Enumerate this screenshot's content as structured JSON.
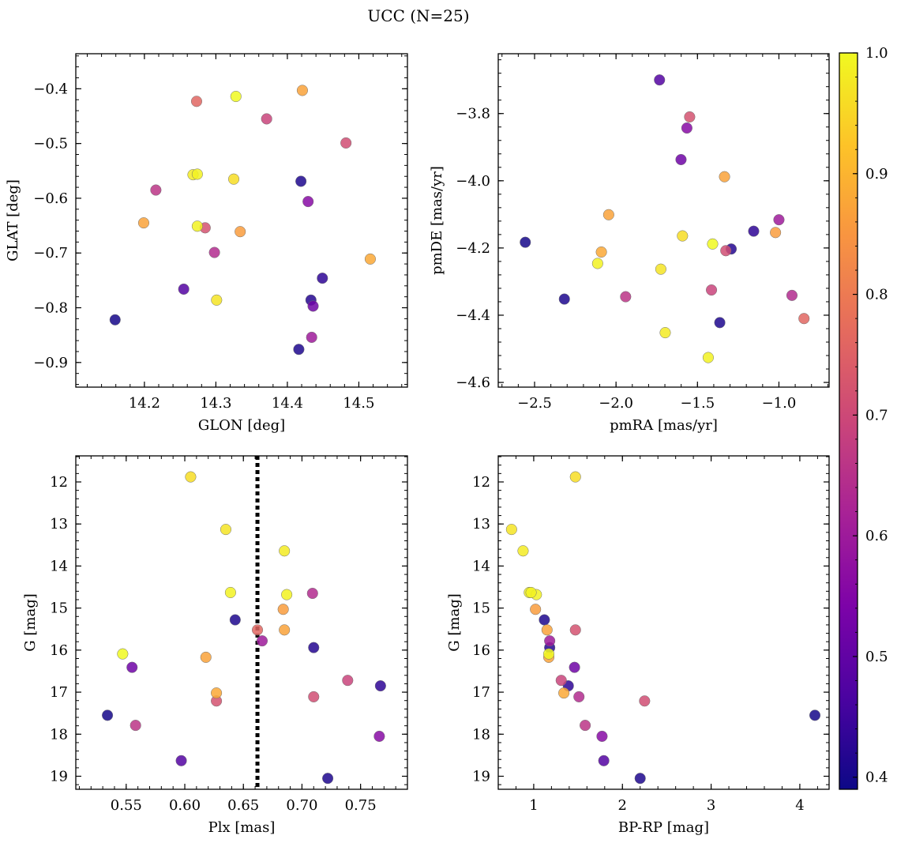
{
  "title": "UCC (N=25)",
  "colorbar": {
    "cmap": "plasma",
    "min": 0.39,
    "max": 1.0,
    "ticks": [
      0.4,
      0.5,
      0.6,
      0.7,
      0.8,
      0.9,
      1.0
    ],
    "tick_labels": [
      "0.4",
      "0.5",
      "0.6",
      "0.7",
      "0.8",
      "0.9",
      "1.0"
    ]
  },
  "chart_data": [
    {
      "type": "scatter",
      "xlabel": "GLON [deg]",
      "ylabel": "GLAT [deg]",
      "xlim": [
        14.104,
        14.568
      ],
      "ylim": [
        -0.945,
        -0.336
      ],
      "y_inverted": false,
      "xticks": [
        14.2,
        14.3,
        14.4,
        14.5
      ],
      "xtick_labels": [
        "14.2",
        "14.3",
        "14.4",
        "14.5"
      ],
      "yticks": [
        -0.4,
        -0.5,
        -0.6,
        -0.7,
        -0.8,
        -0.9
      ],
      "ytick_labels": [
        "−0.4",
        "−0.5",
        "−0.6",
        "−0.7",
        "−0.8",
        "−0.9"
      ],
      "points": [
        {
          "x": 14.159,
          "y": -0.822,
          "c": 0.4
        },
        {
          "x": 14.419,
          "y": -0.569,
          "c": 0.41
        },
        {
          "x": 14.416,
          "y": -0.876,
          "c": 0.41
        },
        {
          "x": 14.433,
          "y": -0.786,
          "c": 0.42
        },
        {
          "x": 14.449,
          "y": -0.746,
          "c": 0.43
        },
        {
          "x": 14.255,
          "y": -0.766,
          "c": 0.48
        },
        {
          "x": 14.436,
          "y": -0.797,
          "c": 0.52
        },
        {
          "x": 14.429,
          "y": -0.606,
          "c": 0.56
        },
        {
          "x": 14.434,
          "y": -0.854,
          "c": 0.6
        },
        {
          "x": 14.298,
          "y": -0.699,
          "c": 0.64
        },
        {
          "x": 14.216,
          "y": -0.585,
          "c": 0.66
        },
        {
          "x": 14.371,
          "y": -0.455,
          "c": 0.69
        },
        {
          "x": 14.482,
          "y": -0.499,
          "c": 0.71
        },
        {
          "x": 14.285,
          "y": -0.654,
          "c": 0.72
        },
        {
          "x": 14.273,
          "y": -0.423,
          "c": 0.76
        },
        {
          "x": 14.334,
          "y": -0.661,
          "c": 0.86
        },
        {
          "x": 14.421,
          "y": -0.403,
          "c": 0.87
        },
        {
          "x": 14.199,
          "y": -0.645,
          "c": 0.87
        },
        {
          "x": 14.516,
          "y": -0.711,
          "c": 0.88
        },
        {
          "x": 14.325,
          "y": -0.565,
          "c": 0.96
        },
        {
          "x": 14.301,
          "y": -0.786,
          "c": 0.97
        },
        {
          "x": 14.268,
          "y": -0.557,
          "c": 0.98
        },
        {
          "x": 14.274,
          "y": -0.556,
          "c": 0.99
        },
        {
          "x": 14.274,
          "y": -0.651,
          "c": 0.99
        },
        {
          "x": 14.328,
          "y": -0.414,
          "c": 1.0
        }
      ]
    },
    {
      "type": "scatter",
      "xlabel": "pmRA [mas/yr]",
      "ylabel": "pmDE [mas/yr]",
      "xlim": [
        -2.723,
        -0.692
      ],
      "ylim": [
        -4.614,
        -3.622
      ],
      "y_inverted": false,
      "xticks": [
        -2.5,
        -2.0,
        -1.5,
        -1.0
      ],
      "xtick_labels": [
        "−2.5",
        "−2.0",
        "−1.5",
        "−1.0"
      ],
      "yticks": [
        -3.8,
        -4.0,
        -4.2,
        -4.4,
        -4.6
      ],
      "ytick_labels": [
        "−3.8",
        "−4.0",
        "−4.2",
        "−4.4",
        "−4.6"
      ],
      "points": [
        {
          "x": -2.557,
          "y": -4.183,
          "c": 0.4
        },
        {
          "x": -2.317,
          "y": -4.352,
          "c": 0.41
        },
        {
          "x": -1.363,
          "y": -4.422,
          "c": 0.41
        },
        {
          "x": -1.293,
          "y": -4.203,
          "c": 0.42
        },
        {
          "x": -1.155,
          "y": -4.15,
          "c": 0.43
        },
        {
          "x": -1.733,
          "y": -3.7,
          "c": 0.48
        },
        {
          "x": -1.601,
          "y": -3.937,
          "c": 0.52
        },
        {
          "x": -1.565,
          "y": -3.843,
          "c": 0.56
        },
        {
          "x": -1.0,
          "y": -4.116,
          "c": 0.6
        },
        {
          "x": -0.92,
          "y": -4.341,
          "c": 0.64
        },
        {
          "x": -1.941,
          "y": -4.345,
          "c": 0.66
        },
        {
          "x": -1.414,
          "y": -4.325,
          "c": 0.69
        },
        {
          "x": -1.326,
          "y": -4.208,
          "c": 0.71
        },
        {
          "x": -1.548,
          "y": -3.81,
          "c": 0.72
        },
        {
          "x": -0.846,
          "y": -4.41,
          "c": 0.76
        },
        {
          "x": -1.021,
          "y": -4.154,
          "c": 0.86
        },
        {
          "x": -1.334,
          "y": -3.988,
          "c": 0.87
        },
        {
          "x": -2.045,
          "y": -4.101,
          "c": 0.87
        },
        {
          "x": -2.09,
          "y": -4.212,
          "c": 0.88
        },
        {
          "x": -1.592,
          "y": -4.164,
          "c": 0.96
        },
        {
          "x": -1.725,
          "y": -4.263,
          "c": 0.97
        },
        {
          "x": -1.698,
          "y": -4.452,
          "c": 0.98
        },
        {
          "x": -2.113,
          "y": -4.246,
          "c": 0.99
        },
        {
          "x": -1.434,
          "y": -4.526,
          "c": 0.99
        },
        {
          "x": -1.407,
          "y": -4.188,
          "c": 1.0
        }
      ]
    },
    {
      "type": "scatter",
      "xlabel": "Plx [mas]",
      "ylabel": "G [mag]",
      "xlim": [
        0.507,
        0.79
      ],
      "ylim": [
        19.31,
        11.38
      ],
      "y_inverted": true,
      "xticks": [
        0.55,
        0.6,
        0.65,
        0.7,
        0.75
      ],
      "xtick_labels": [
        "0.55",
        "0.60",
        "0.65",
        "0.70",
        "0.75"
      ],
      "yticks": [
        12,
        13,
        14,
        15,
        16,
        17,
        18,
        19
      ],
      "ytick_labels": [
        "12",
        "13",
        "14",
        "15",
        "16",
        "17",
        "18",
        "19"
      ],
      "vline": {
        "x": 0.662,
        "style": "dotted"
      },
      "points": [
        {
          "x": 0.534,
          "y": 17.55,
          "c": 0.4
        },
        {
          "x": 0.722,
          "y": 19.05,
          "c": 0.41
        },
        {
          "x": 0.643,
          "y": 15.28,
          "c": 0.41
        },
        {
          "x": 0.71,
          "y": 15.94,
          "c": 0.42
        },
        {
          "x": 0.767,
          "y": 16.85,
          "c": 0.43
        },
        {
          "x": 0.597,
          "y": 18.63,
          "c": 0.48
        },
        {
          "x": 0.555,
          "y": 16.41,
          "c": 0.52
        },
        {
          "x": 0.766,
          "y": 18.05,
          "c": 0.56
        },
        {
          "x": 0.666,
          "y": 15.78,
          "c": 0.6
        },
        {
          "x": 0.709,
          "y": 14.65,
          "c": 0.64
        },
        {
          "x": 0.558,
          "y": 17.79,
          "c": 0.66
        },
        {
          "x": 0.739,
          "y": 16.72,
          "c": 0.69
        },
        {
          "x": 0.71,
          "y": 17.11,
          "c": 0.71
        },
        {
          "x": 0.627,
          "y": 17.21,
          "c": 0.72
        },
        {
          "x": 0.662,
          "y": 15.52,
          "c": 0.76
        },
        {
          "x": 0.684,
          "y": 15.03,
          "c": 0.86
        },
        {
          "x": 0.685,
          "y": 15.52,
          "c": 0.87
        },
        {
          "x": 0.618,
          "y": 16.17,
          "c": 0.87
        },
        {
          "x": 0.627,
          "y": 17.02,
          "c": 0.88
        },
        {
          "x": 0.605,
          "y": 11.88,
          "c": 0.96
        },
        {
          "x": 0.635,
          "y": 13.13,
          "c": 0.97
        },
        {
          "x": 0.685,
          "y": 13.64,
          "c": 0.98
        },
        {
          "x": 0.639,
          "y": 14.63,
          "c": 0.99
        },
        {
          "x": 0.687,
          "y": 14.68,
          "c": 0.99
        },
        {
          "x": 0.547,
          "y": 16.09,
          "c": 1.0
        }
      ]
    },
    {
      "type": "scatter",
      "xlabel": "BP-RP [mag]",
      "ylabel": "G [mag]",
      "xlim": [
        0.6,
        4.33
      ],
      "ylim": [
        19.31,
        11.38
      ],
      "y_inverted": true,
      "xticks": [
        1,
        2,
        3,
        4
      ],
      "xtick_labels": [
        "1",
        "2",
        "3",
        "4"
      ],
      "yticks": [
        12,
        13,
        14,
        15,
        16,
        17,
        18,
        19
      ],
      "ytick_labels": [
        "12",
        "13",
        "14",
        "15",
        "16",
        "17",
        "18",
        "19"
      ],
      "points": [
        {
          "x": 4.17,
          "y": 17.55,
          "c": 0.4
        },
        {
          "x": 2.2,
          "y": 19.05,
          "c": 0.41
        },
        {
          "x": 1.12,
          "y": 15.28,
          "c": 0.41
        },
        {
          "x": 1.18,
          "y": 15.94,
          "c": 0.42
        },
        {
          "x": 1.39,
          "y": 16.85,
          "c": 0.43
        },
        {
          "x": 1.79,
          "y": 18.63,
          "c": 0.48
        },
        {
          "x": 1.46,
          "y": 16.41,
          "c": 0.52
        },
        {
          "x": 1.77,
          "y": 18.05,
          "c": 0.56
        },
        {
          "x": 1.18,
          "y": 15.78,
          "c": 0.6
        },
        {
          "x": 1.51,
          "y": 17.11,
          "c": 0.64
        },
        {
          "x": 1.58,
          "y": 17.79,
          "c": 0.66
        },
        {
          "x": 1.31,
          "y": 16.72,
          "c": 0.69
        },
        {
          "x": 2.25,
          "y": 17.21,
          "c": 0.71
        },
        {
          "x": 1.47,
          "y": 15.52,
          "c": 0.72
        },
        {
          "x": 1.02,
          "y": 15.03,
          "c": 0.86
        },
        {
          "x": 1.15,
          "y": 15.52,
          "c": 0.87
        },
        {
          "x": 1.17,
          "y": 16.17,
          "c": 0.87
        },
        {
          "x": 1.34,
          "y": 17.02,
          "c": 0.88
        },
        {
          "x": 1.47,
          "y": 11.88,
          "c": 0.96
        },
        {
          "x": 0.75,
          "y": 13.13,
          "c": 0.97
        },
        {
          "x": 0.88,
          "y": 13.64,
          "c": 0.98
        },
        {
          "x": 0.95,
          "y": 14.63,
          "c": 0.99
        },
        {
          "x": 1.03,
          "y": 14.68,
          "c": 0.99
        },
        {
          "x": 1.17,
          "y": 16.09,
          "c": 1.0
        },
        {
          "x": 0.97,
          "y": 14.63,
          "c": 0.99
        }
      ]
    }
  ]
}
